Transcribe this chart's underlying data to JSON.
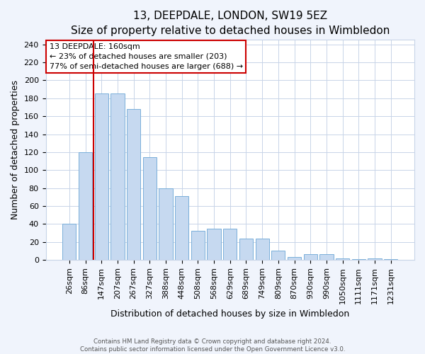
{
  "title": "13, DEEPDALE, LONDON, SW19 5EZ",
  "subtitle": "Size of property relative to detached houses in Wimbledon",
  "xlabel": "Distribution of detached houses by size in Wimbledon",
  "ylabel": "Number of detached properties",
  "categories": [
    "26sqm",
    "86sqm",
    "147sqm",
    "207sqm",
    "267sqm",
    "327sqm",
    "388sqm",
    "448sqm",
    "508sqm",
    "568sqm",
    "629sqm",
    "689sqm",
    "749sqm",
    "809sqm",
    "870sqm",
    "930sqm",
    "990sqm",
    "1050sqm",
    "1111sqm",
    "1171sqm",
    "1231sqm"
  ],
  "values": [
    40,
    120,
    185,
    185,
    168,
    114,
    80,
    71,
    32,
    35,
    35,
    24,
    24,
    10,
    3,
    6,
    6,
    2,
    1,
    2,
    1
  ],
  "bar_color": "#c6d9f0",
  "bar_edge_color": "#7aafda",
  "vline_x_index": 1.5,
  "property_label": "13 DEEPDALE: 160sqm",
  "annotation_line1": "← 23% of detached houses are smaller (203)",
  "annotation_line2": "77% of semi-detached houses are larger (688) →",
  "annotation_box_facecolor": "#ffffff",
  "annotation_box_edgecolor": "#cc0000",
  "vline_color": "#cc0000",
  "ylim": [
    0,
    245
  ],
  "yticks": [
    0,
    20,
    40,
    60,
    80,
    100,
    120,
    140,
    160,
    180,
    200,
    220,
    240
  ],
  "title_fontsize": 11,
  "xlabel_fontsize": 9,
  "ylabel_fontsize": 9,
  "tick_fontsize": 8,
  "annot_fontsize": 8,
  "footer_line1": "Contains HM Land Registry data © Crown copyright and database right 2024.",
  "footer_line2": "Contains public sector information licensed under the Open Government Licence v3.0.",
  "background_color": "#f0f4fc",
  "plot_background_color": "#ffffff",
  "grid_color": "#c8d4e8"
}
